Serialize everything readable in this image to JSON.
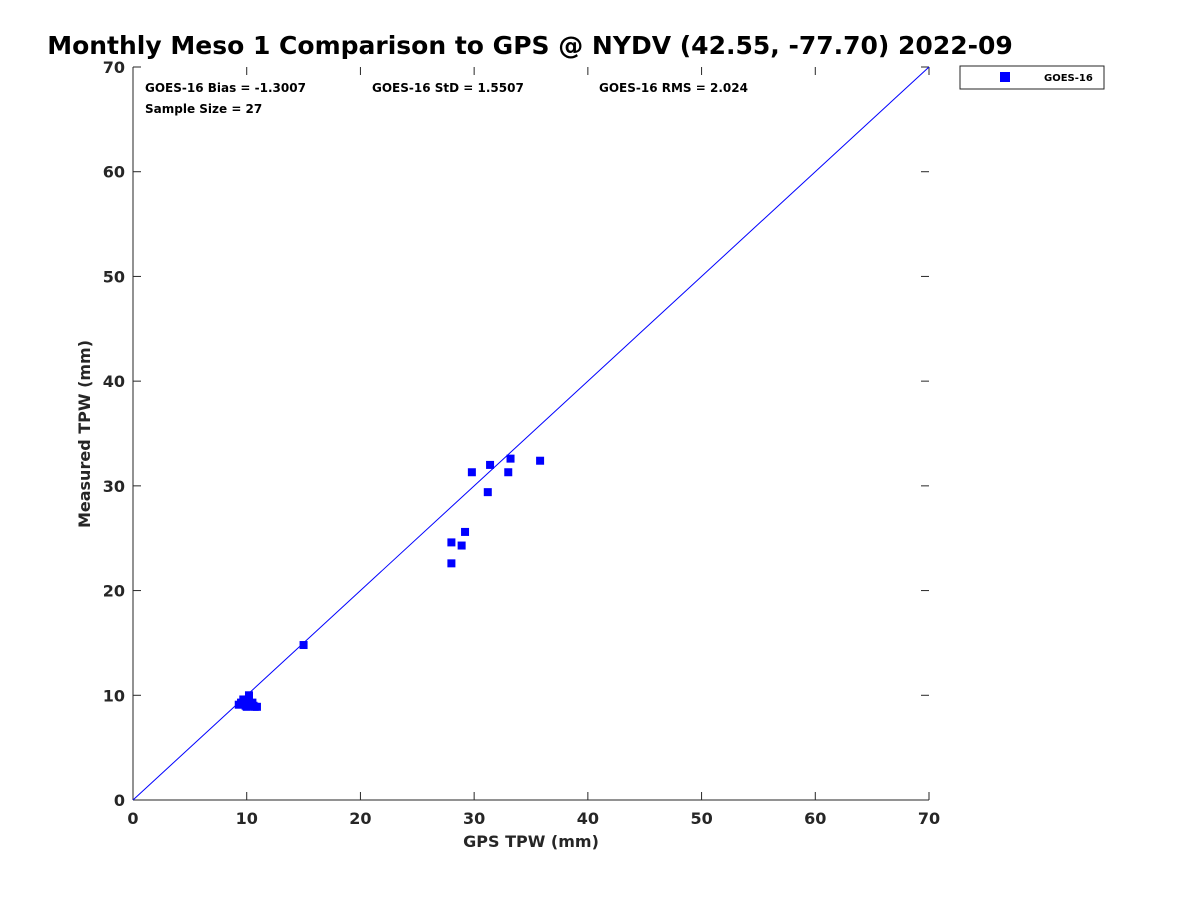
{
  "chart_data": {
    "type": "scatter",
    "title": "Monthly Meso 1 Comparison to GPS @ NYDV (42.55, -77.70) 2022-09",
    "xlabel": "GPS TPW (mm)",
    "ylabel": "Measured TPW (mm)",
    "xlim": [
      0,
      70
    ],
    "ylim": [
      0,
      70
    ],
    "xticks": [
      "0",
      "10",
      "20",
      "30",
      "40",
      "50",
      "60",
      "70"
    ],
    "yticks": [
      "0",
      "10",
      "20",
      "30",
      "40",
      "50",
      "60",
      "70"
    ],
    "grid": false,
    "legend_position": "top-right outside",
    "reference_line": {
      "x": [
        0,
        70
      ],
      "y": [
        0,
        70
      ],
      "color": "#0000ff"
    },
    "stats": {
      "bias": "GOES-16 Bias = -1.3007",
      "std": "GOES-16 StD = 1.5507",
      "rms": "GOES-16 RMS = 2.024",
      "sample_size": "Sample Size = 27"
    },
    "series": [
      {
        "name": "GOES-16",
        "color": "#0000ff",
        "marker": "square",
        "x": [
          9.3,
          9.7,
          9.9,
          10.0,
          10.2,
          10.3,
          10.5,
          10.7,
          10.9,
          9.5,
          10.1,
          10.4,
          9.8,
          10.0,
          15.0,
          28.0,
          28.0,
          28.9,
          29.2,
          29.8,
          31.2,
          31.4,
          33.0,
          33.2,
          35.8,
          10.6,
          9.9
        ],
        "y": [
          9.1,
          9.6,
          9.0,
          9.4,
          10.0,
          9.0,
          9.3,
          8.9,
          8.9,
          9.3,
          9.6,
          9.1,
          9.2,
          8.9,
          14.8,
          24.6,
          22.6,
          24.3,
          25.6,
          31.3,
          29.4,
          32.0,
          31.3,
          32.6,
          32.4,
          9.0,
          9.5
        ]
      }
    ]
  }
}
